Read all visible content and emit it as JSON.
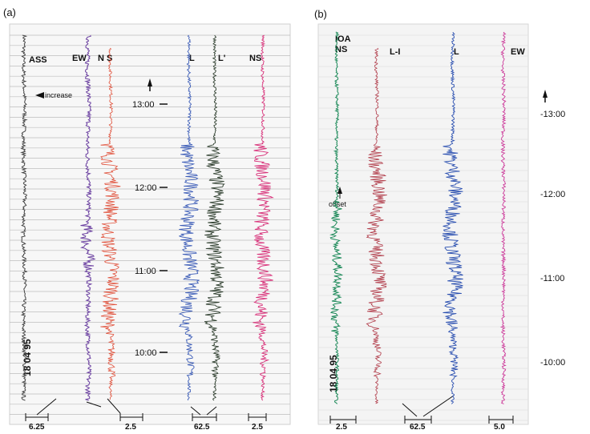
{
  "chart_data": [
    {
      "type": "line",
      "panel_label": "(a)",
      "date_label": "18 04 95",
      "time_ticks": [
        "13:00",
        "12:00",
        "11:00",
        "10:00"
      ],
      "annotations": {
        "arrow_text": "increase"
      },
      "traces": [
        {
          "name": "ASS",
          "color": "#444444"
        },
        {
          "name": "EW",
          "color": "#6a3fa0"
        },
        {
          "name": "N S",
          "color": "#e0503a"
        },
        {
          "name": "L",
          "color": "#3f5fb8"
        },
        {
          "name": "L'",
          "color": "#2f3f2f"
        },
        {
          "name": "NS",
          "color": "#d8327a"
        }
      ],
      "scale_bars": [
        "6.25",
        "2.5",
        "62.5",
        "2.5"
      ]
    },
    {
      "type": "line",
      "panel_label": "(b)",
      "date_label": "18 04 95",
      "time_ticks": [
        "-13:00",
        "-12:00",
        "-11:00",
        "-10:00"
      ],
      "annotations": {
        "arrow_text": "offset"
      },
      "traces": [
        {
          "name": "IOA NS",
          "color": "#1e8a5a"
        },
        {
          "name": "L-I",
          "color": "#b03a48"
        },
        {
          "name": "L",
          "color": "#2a4fb0"
        },
        {
          "name": "EW",
          "color": "#cc3a9a"
        }
      ],
      "scale_bars": [
        "2.5",
        "62.5",
        "5.0"
      ]
    }
  ]
}
